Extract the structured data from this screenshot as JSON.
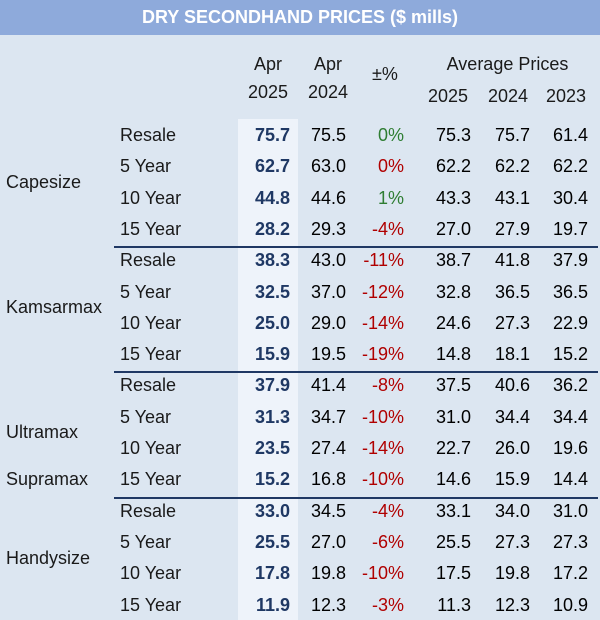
{
  "title": "DRY SECONDHAND PRICES ($ mills)",
  "headers": {
    "apr_cur": [
      "Apr",
      "2025"
    ],
    "apr_prev": [
      "Apr",
      "2024"
    ],
    "chg": "±%",
    "avg": "Average Prices",
    "avg_years": [
      "2025",
      "2024",
      "2023"
    ]
  },
  "chart_data": {
    "type": "table",
    "title": "DRY SECONDHAND PRICES ($ mills)",
    "columns": [
      "Apr 2025",
      "Apr 2024",
      "±%",
      "Average 2025",
      "Average 2024",
      "Average 2023"
    ],
    "groups": [
      {
        "name": "Capesize",
        "rows": [
          {
            "age": "Resale",
            "values": [
              "75.7",
              "75.5",
              "0%",
              "75.3",
              "75.7",
              "61.4"
            ]
          },
          {
            "age": "5 Year",
            "values": [
              "62.7",
              "63.0",
              "0%",
              "62.2",
              "62.2",
              "62.2"
            ]
          },
          {
            "age": "10 Year",
            "values": [
              "44.8",
              "44.6",
              "1%",
              "43.3",
              "43.1",
              "30.4"
            ]
          },
          {
            "age": "15 Year",
            "values": [
              "28.2",
              "29.3",
              "-4%",
              "27.0",
              "27.9",
              "19.7"
            ]
          }
        ]
      },
      {
        "name": "Kamsarmax",
        "rows": [
          {
            "age": "Resale",
            "values": [
              "38.3",
              "43.0",
              "-11%",
              "38.7",
              "41.8",
              "37.9"
            ]
          },
          {
            "age": "5 Year",
            "values": [
              "32.5",
              "37.0",
              "-12%",
              "32.8",
              "36.5",
              "36.5"
            ]
          },
          {
            "age": "10 Year",
            "values": [
              "25.0",
              "29.0",
              "-14%",
              "24.6",
              "27.3",
              "22.9"
            ]
          },
          {
            "age": "15 Year",
            "values": [
              "15.9",
              "19.5",
              "-19%",
              "14.8",
              "18.1",
              "15.2"
            ]
          }
        ]
      },
      {
        "name": "Ultramax",
        "name2": "Supramax",
        "rows": [
          {
            "age": "Resale",
            "values": [
              "37.9",
              "41.4",
              "-8%",
              "37.5",
              "40.6",
              "36.2"
            ]
          },
          {
            "age": "5 Year",
            "values": [
              "31.3",
              "34.7",
              "-10%",
              "31.0",
              "34.4",
              "34.4"
            ]
          },
          {
            "age": "10 Year",
            "values": [
              "23.5",
              "27.4",
              "-14%",
              "22.7",
              "26.0",
              "19.6"
            ]
          },
          {
            "age": "15 Year",
            "values": [
              "15.2",
              "16.8",
              "-10%",
              "14.6",
              "15.9",
              "14.4"
            ]
          }
        ]
      },
      {
        "name": "Handysize",
        "rows": [
          {
            "age": "Resale",
            "values": [
              "33.0",
              "34.5",
              "-4%",
              "33.1",
              "34.0",
              "31.0"
            ]
          },
          {
            "age": "5 Year",
            "values": [
              "25.5",
              "27.0",
              "-6%",
              "25.5",
              "27.3",
              "27.3"
            ]
          },
          {
            "age": "10 Year",
            "values": [
              "17.8",
              "19.8",
              "-10%",
              "17.5",
              "19.8",
              "17.2"
            ]
          },
          {
            "age": "15 Year",
            "values": [
              "11.9",
              "12.3",
              "-3%",
              "11.3",
              "12.3",
              "10.9"
            ]
          }
        ]
      }
    ]
  },
  "colors": {
    "header_bar": "#8eaadb",
    "table_bg": "#dce6f1",
    "bold_text": "#1f3864",
    "positive": "#2e7d32",
    "negative": "#b00000",
    "separator": "#1f3864"
  }
}
